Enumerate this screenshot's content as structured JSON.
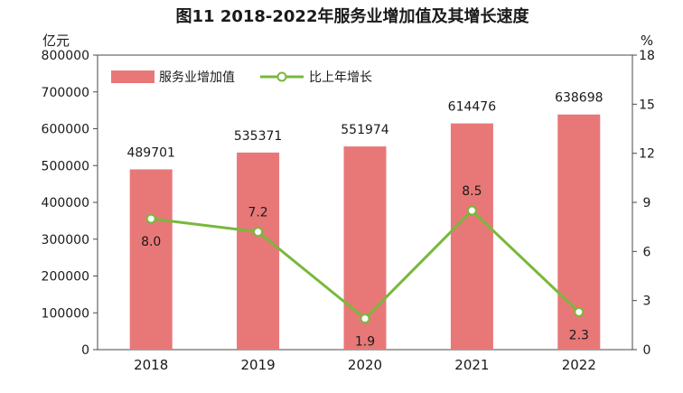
{
  "chart_data": {
    "type": "bar",
    "title": "图11   2018-2022年服务业增加值及其增长速度",
    "y_left_unit": "亿元",
    "y_right_unit": "%",
    "categories": [
      "2018",
      "2019",
      "2020",
      "2021",
      "2022"
    ],
    "y_left_ticks": [
      "0",
      "100000",
      "200000",
      "300000",
      "400000",
      "500000",
      "600000",
      "700000",
      "800000"
    ],
    "y_right_ticks": [
      "0",
      "3",
      "6",
      "9",
      "12",
      "15",
      "18"
    ],
    "ylim_left": [
      0,
      800000
    ],
    "ylim_right": [
      0,
      18
    ],
    "legend_position": "top-left",
    "series": [
      {
        "name": "服务业增加值",
        "type": "bar",
        "axis": "left",
        "color": "#e87878",
        "values": [
          489701,
          535371,
          551974,
          614476,
          638698
        ],
        "labels": [
          "489701",
          "535371",
          "551974",
          "614476",
          "638698"
        ]
      },
      {
        "name": "比上年增长",
        "type": "line",
        "axis": "right",
        "color": "#78b83c",
        "values": [
          8.0,
          7.2,
          1.9,
          8.5,
          2.3
        ],
        "labels": [
          "8.0",
          "7.2",
          "1.9",
          "8.5",
          "2.3"
        ]
      }
    ]
  }
}
